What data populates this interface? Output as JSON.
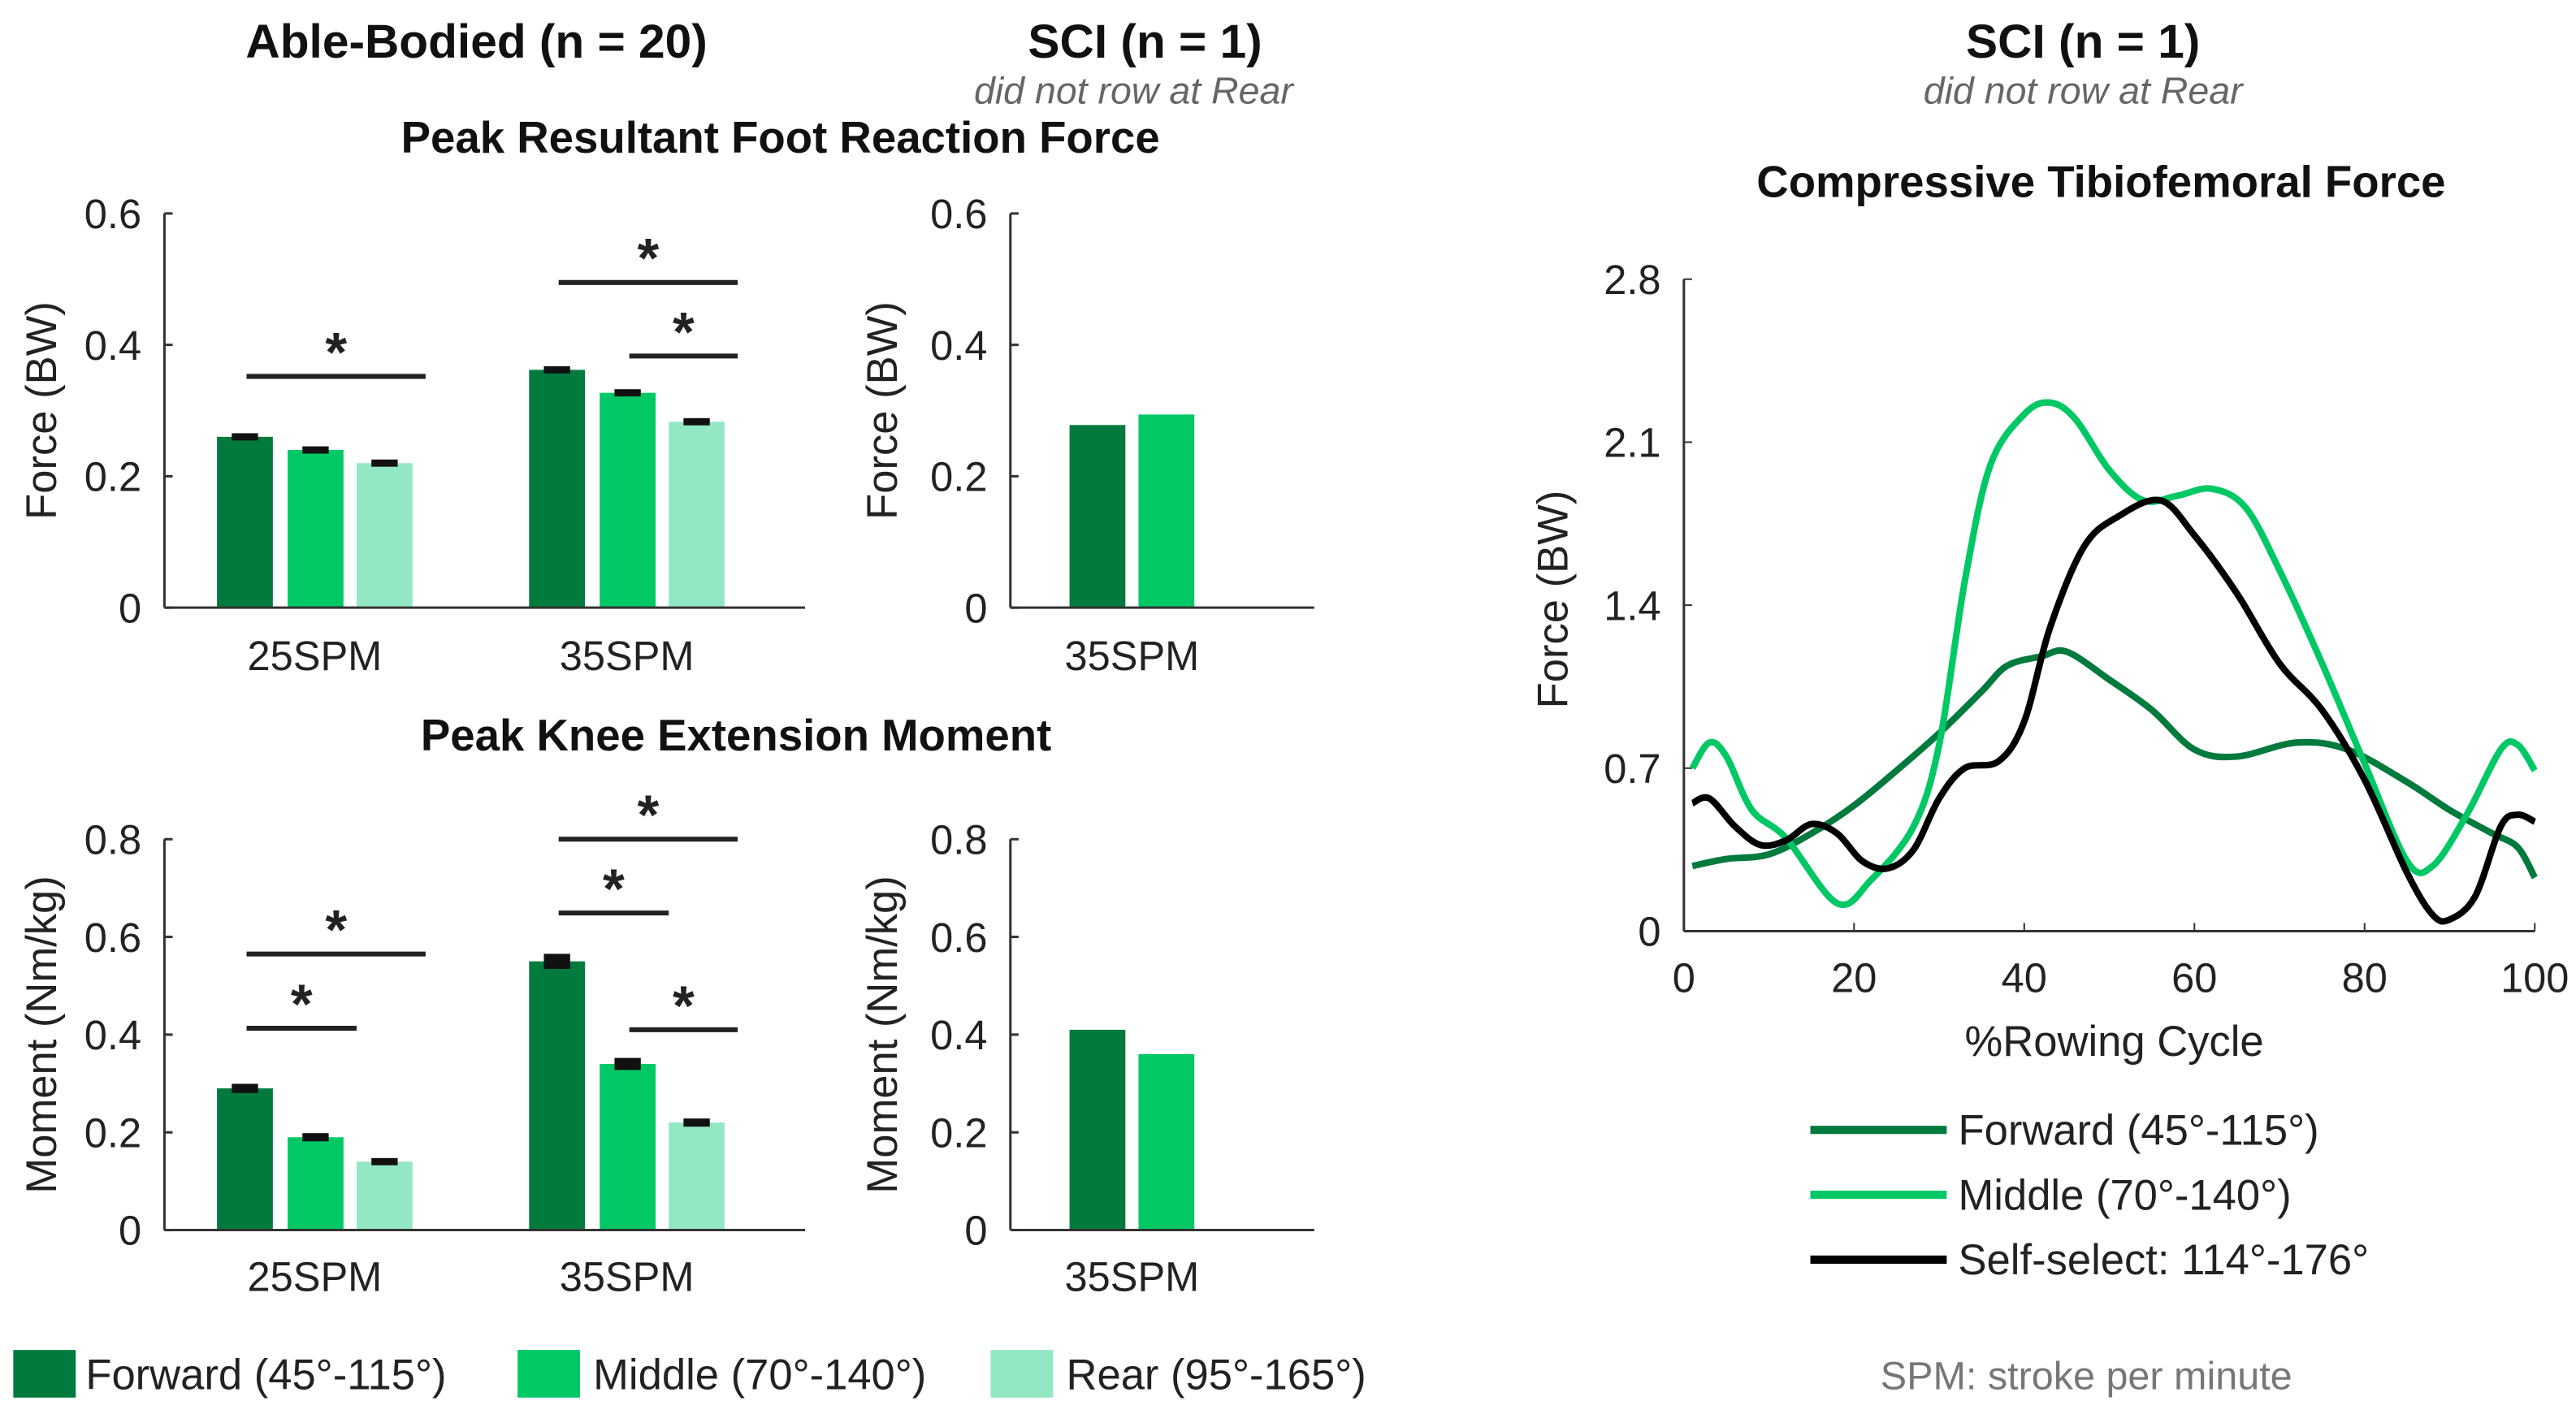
{
  "colors": {
    "forward": "#007a3d",
    "middle": "#00c865",
    "rear": "#93e8c4",
    "self_select": "#000000"
  },
  "headers": {
    "able_bodied": "Able-Bodied (n = 20)",
    "sci_left": "SCI (n = 1)",
    "sci_left_note": "did not row at Rear",
    "sci_right": "SCI (n = 1)",
    "sci_right_note": "did not row at Rear",
    "row1_title": "Peak Resultant Foot Reaction Force",
    "row2_title": "Peak Knee Extension Moment"
  },
  "legend_bottom": [
    "Forward (45°-115°)",
    "Middle (70°-140°)",
    "Rear (95°-165°)"
  ],
  "footnote": "SPM: stroke per minute",
  "chart_data": [
    {
      "id": "ab_force",
      "type": "bar",
      "ylabel": "Force (BW)",
      "ylim": [
        0,
        0.6
      ],
      "yticks": [
        "0",
        "0.2",
        "0.4",
        "0.6"
      ],
      "categories": [
        "25SPM",
        "35SPM"
      ],
      "series": [
        {
          "name": "Forward (45°-115°)",
          "values": [
            0.26,
            0.362
          ],
          "err": [
            0.003,
            0.003
          ]
        },
        {
          "name": "Middle (70°-140°)",
          "values": [
            0.24,
            0.327
          ],
          "err": [
            0.003,
            0.003
          ]
        },
        {
          "name": "Rear (95°-165°)",
          "values": [
            0.22,
            0.283
          ],
          "err": [
            0.003,
            0.003
          ]
        }
      ],
      "significance": [
        {
          "category": 0,
          "from": 0,
          "to": 2,
          "level": 0.352,
          "label": "*"
        },
        {
          "category": 1,
          "from": 0,
          "to": 2,
          "level": 0.495,
          "label": "*"
        },
        {
          "category": 1,
          "from": 1,
          "to": 2,
          "level": 0.383,
          "label": "*"
        }
      ]
    },
    {
      "id": "sci_force",
      "type": "bar",
      "ylabel": "Force (BW)",
      "ylim": [
        0,
        0.6
      ],
      "yticks": [
        "0",
        "0.2",
        "0.4",
        "0.6"
      ],
      "categories": [
        "35SPM"
      ],
      "series": [
        {
          "name": "Forward (45°-115°)",
          "values": [
            0.278
          ]
        },
        {
          "name": "Middle (70°-140°)",
          "values": [
            0.294
          ]
        }
      ],
      "significance": []
    },
    {
      "id": "ab_moment",
      "type": "bar",
      "ylabel": "Moment (Nm/kg)",
      "ylim": [
        0,
        0.8
      ],
      "yticks": [
        "0",
        "0.2",
        "0.4",
        "0.6",
        "0.8"
      ],
      "categories": [
        "25SPM",
        "35SPM"
      ],
      "series": [
        {
          "name": "Forward (45°-115°)",
          "values": [
            0.29,
            0.55
          ],
          "err": [
            0.006,
            0.012
          ]
        },
        {
          "name": "Middle (70°-140°)",
          "values": [
            0.19,
            0.34
          ],
          "err": [
            0.005,
            0.009
          ]
        },
        {
          "name": "Rear (95°-165°)",
          "values": [
            0.14,
            0.22
          ],
          "err": [
            0.004,
            0.005
          ]
        }
      ],
      "significance": [
        {
          "category": 0,
          "from": 0,
          "to": 2,
          "level": 0.565,
          "label": "*"
        },
        {
          "category": 0,
          "from": 0,
          "to": 1,
          "level": 0.413,
          "label": "*"
        },
        {
          "category": 1,
          "from": 0,
          "to": 2,
          "level": 0.8,
          "label": "*"
        },
        {
          "category": 1,
          "from": 0,
          "to": 1,
          "level": 0.649,
          "label": "*"
        },
        {
          "category": 1,
          "from": 1,
          "to": 2,
          "level": 0.41,
          "label": "*"
        }
      ]
    },
    {
      "id": "sci_moment",
      "type": "bar",
      "ylabel": "Moment (Nm/kg)",
      "ylim": [
        0,
        0.8
      ],
      "yticks": [
        "0",
        "0.2",
        "0.4",
        "0.6",
        "0.8"
      ],
      "categories": [
        "35SPM"
      ],
      "series": [
        {
          "name": "Forward (45°-115°)",
          "values": [
            0.41
          ]
        },
        {
          "name": "Middle (70°-140°)",
          "values": [
            0.36
          ]
        }
      ],
      "significance": []
    },
    {
      "id": "tibiofemoral",
      "type": "line",
      "title": "Compressive Tibiofemoral Force",
      "xlabel": "%Rowing Cycle",
      "ylabel": "Force (BW)",
      "xlim": [
        0,
        100
      ],
      "ylim": [
        0,
        2.8
      ],
      "xticks": [
        "0",
        "20",
        "40",
        "60",
        "80",
        "100"
      ],
      "yticks": [
        "0",
        "0.7",
        "1.4",
        "2.1",
        "2.8"
      ],
      "legend_placement": "bottom",
      "series": [
        {
          "name": "Forward (45°-115°)",
          "color": "#007a3d",
          "x": [
            1,
            5,
            10,
            15,
            20,
            25,
            30,
            35,
            38,
            42,
            45,
            50,
            55,
            60,
            65,
            72,
            78,
            85,
            90,
            95,
            98,
            100
          ],
          "y": [
            0.28,
            0.31,
            0.33,
            0.42,
            0.54,
            0.69,
            0.85,
            1.03,
            1.14,
            1.18,
            1.2,
            1.08,
            0.95,
            0.78,
            0.75,
            0.81,
            0.78,
            0.64,
            0.52,
            0.42,
            0.36,
            0.23
          ]
        },
        {
          "name": "Middle (70°-140°)",
          "color": "#00c865",
          "x": [
            1,
            3,
            5,
            8,
            12,
            18,
            22,
            27,
            30,
            33,
            36,
            40,
            43,
            46,
            50,
            54,
            58,
            62,
            66,
            70,
            75,
            80,
            85,
            88,
            92,
            96,
            98,
            100
          ],
          "y": [
            0.7,
            0.81,
            0.75,
            0.52,
            0.4,
            0.12,
            0.22,
            0.45,
            0.8,
            1.5,
            2.0,
            2.22,
            2.27,
            2.2,
            1.98,
            1.85,
            1.87,
            1.9,
            1.82,
            1.55,
            1.15,
            0.72,
            0.3,
            0.28,
            0.5,
            0.78,
            0.8,
            0.69
          ]
        },
        {
          "name": "Self-select: 114°-176°",
          "color": "#000000",
          "x": [
            1,
            3,
            6,
            9,
            12,
            15,
            18,
            21,
            24,
            27,
            30,
            33,
            37,
            40,
            43,
            47,
            51,
            56,
            60,
            65,
            70,
            75,
            80,
            85,
            88,
            90,
            93,
            96,
            98,
            100
          ],
          "y": [
            0.55,
            0.57,
            0.45,
            0.37,
            0.39,
            0.46,
            0.42,
            0.3,
            0.27,
            0.35,
            0.57,
            0.7,
            0.73,
            0.9,
            1.3,
            1.65,
            1.78,
            1.85,
            1.7,
            1.45,
            1.15,
            0.95,
            0.65,
            0.25,
            0.07,
            0.05,
            0.15,
            0.45,
            0.5,
            0.47
          ]
        }
      ]
    }
  ]
}
